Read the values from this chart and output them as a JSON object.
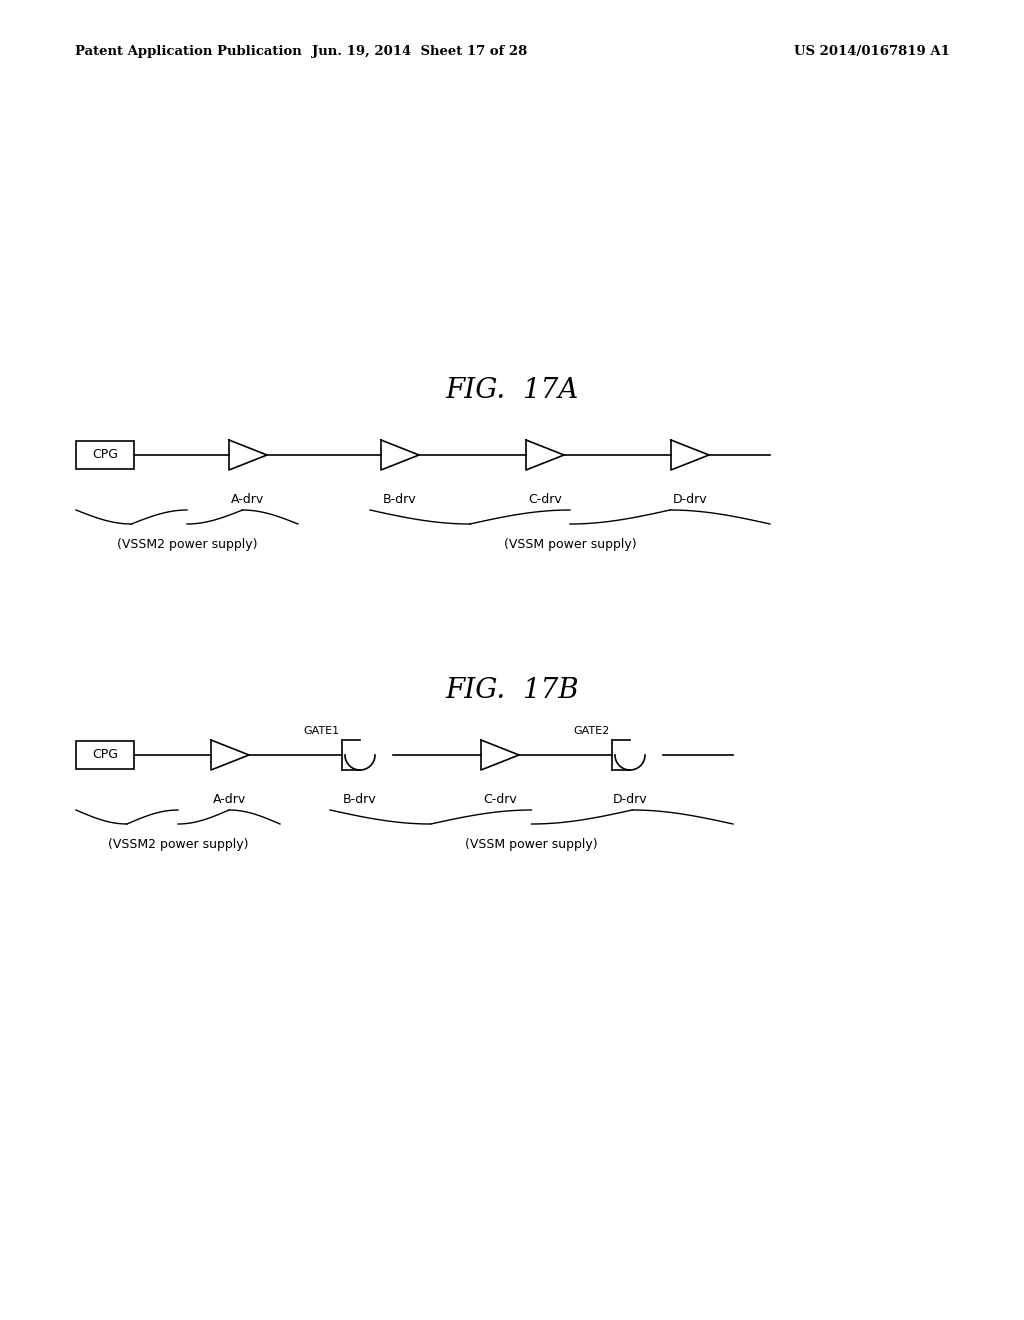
{
  "header_left": "Patent Application Publication",
  "header_mid": "Jun. 19, 2014  Sheet 17 of 28",
  "header_right": "US 2014/0167819 A1",
  "fig17a_title": "FIG.  17A",
  "fig17b_title": "FIG.  17B",
  "bg_color": "#ffffff",
  "text_color": "#000000",
  "line_color": "#000000",
  "label1": "(VSSM2 power supply)",
  "label2": "(VSSM power supply)"
}
